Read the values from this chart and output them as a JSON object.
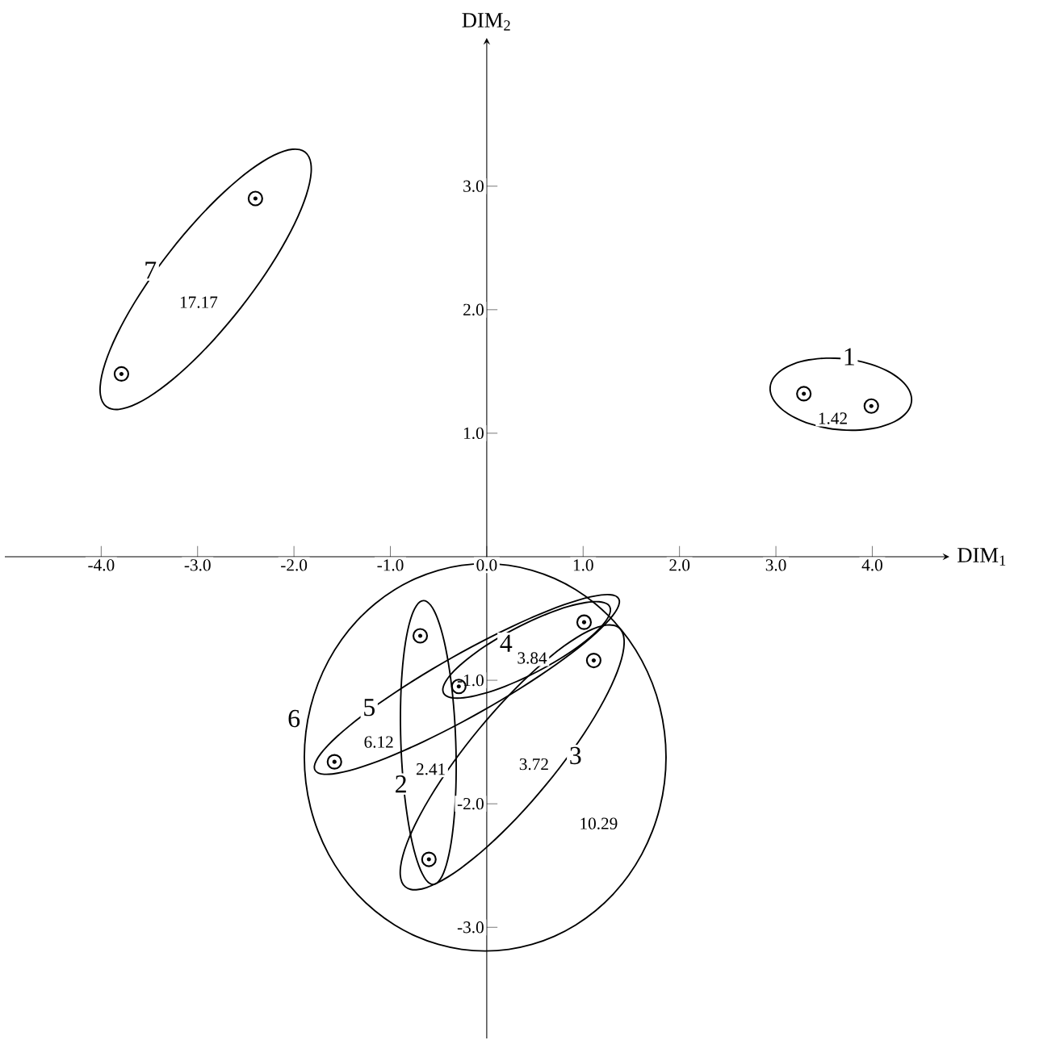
{
  "chart_data": {
    "type": "scatter",
    "xlabel": "DIM$_{1}$",
    "ylabel": "DIM$_{2}$",
    "x": [
      -3.79,
      -2.4,
      3.29,
      3.99,
      -0.69,
      1.01,
      1.11,
      -0.29,
      -1.58,
      -0.6
    ],
    "values": [
      1.48,
      2.9,
      1.32,
      1.22,
      -0.64,
      -0.53,
      -0.84,
      -1.05,
      -1.66,
      -2.45
    ],
    "color": "#000000",
    "marker": "circle",
    "xlim": [
      -5.0,
      4.8
    ],
    "ylim": [
      -3.9,
      4.2
    ],
    "xticks": [
      {
        "value": -4,
        "label": "-4.0"
      },
      {
        "value": -3,
        "label": "-3.0"
      },
      {
        "value": -2,
        "label": "-2.0"
      },
      {
        "value": -1,
        "label": "-1.0"
      },
      {
        "value": 0,
        "label": "0.0"
      },
      {
        "value": 1,
        "label": "1.0"
      },
      {
        "value": 2,
        "label": "2.0"
      },
      {
        "value": 3,
        "label": "3.0"
      },
      {
        "value": 4,
        "label": "4.0"
      }
    ],
    "yticks": [
      {
        "value": -3,
        "label": "-3.0"
      },
      {
        "value": -2,
        "label": "-2.0"
      },
      {
        "value": -1,
        "label": "-1.0"
      },
      {
        "value": 1,
        "label": "1.0"
      },
      {
        "value": 2,
        "label": "2.0"
      },
      {
        "value": 3,
        "label": "3.0"
      }
    ],
    "annotations": [
      "1",
      "2",
      "3",
      "4",
      "5",
      "6",
      "7",
      "1.42",
      "2.41",
      "3.72",
      "3.84",
      "6.12",
      "10.29",
      "17.17"
    ],
    "grid": false
  }
}
